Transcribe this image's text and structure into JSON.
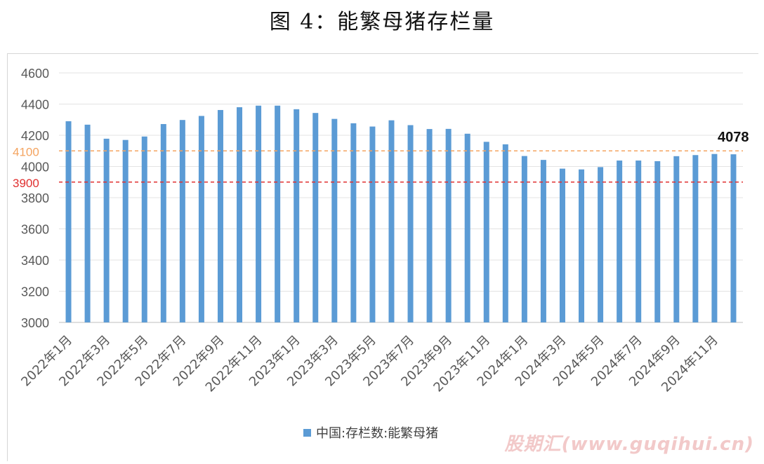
{
  "title": "图 4：能繁母猪存栏量",
  "watermark": "股期汇(www.guqihui.cn)",
  "chart_data": {
    "type": "bar",
    "title": "图 4：能繁母猪存栏量",
    "xlabel": "",
    "ylabel": "",
    "ylim": [
      3000,
      4600
    ],
    "yticks": [
      3000,
      3200,
      3400,
      3600,
      3800,
      4000,
      4200,
      4400,
      4600
    ],
    "grid": true,
    "legend_position": "bottom",
    "bar_color": "#5b9bd5",
    "categories": [
      "2022年1月",
      "2022年2月",
      "2022年3月",
      "2022年4月",
      "2022年5月",
      "2022年6月",
      "2022年7月",
      "2022年8月",
      "2022年9月",
      "2022年10月",
      "2022年11月",
      "2022年12月",
      "2023年1月",
      "2023年2月",
      "2023年3月",
      "2023年4月",
      "2023年5月",
      "2023年6月",
      "2023年7月",
      "2023年8月",
      "2023年9月",
      "2023年10月",
      "2023年11月",
      "2023年12月",
      "2024年1月",
      "2024年2月",
      "2024年3月",
      "2024年4月",
      "2024年5月",
      "2024年6月",
      "2024年7月",
      "2024年8月",
      "2024年9月",
      "2024年10月",
      "2024年11月",
      "2024年12月"
    ],
    "tick_labels": [
      "2022年1月",
      "2022年3月",
      "2022年5月",
      "2022年7月",
      "2022年9月",
      "2022年11月",
      "2023年1月",
      "2023年3月",
      "2023年5月",
      "2023年7月",
      "2023年9月",
      "2023年11月",
      "2024年1月",
      "2024年3月",
      "2024年5月",
      "2024年7月",
      "2024年9月",
      "2024年11月"
    ],
    "series": [
      {
        "name": "中国:存栏数:能繁母猪",
        "values": [
          4290,
          4268,
          4178,
          4170,
          4192,
          4272,
          4298,
          4324,
          4362,
          4380,
          4390,
          4390,
          4367,
          4343,
          4305,
          4277,
          4256,
          4296,
          4265,
          4240,
          4241,
          4210,
          4158,
          4142,
          4067,
          4042,
          3986,
          3981,
          3996,
          4038,
          4038,
          4034,
          4066,
          4073,
          4080,
          4078
        ]
      }
    ],
    "reference_lines": [
      {
        "value": 4100,
        "label": "4100",
        "color": "#f4a460"
      },
      {
        "value": 3900,
        "label": "3900",
        "color": "#e03030"
      }
    ],
    "annotation": "4078",
    "colors": {
      "bar": "#5b9bd5",
      "ref_4100": "#f4a460",
      "ref_3900": "#e03030",
      "grid": "#e3e3e3"
    }
  }
}
